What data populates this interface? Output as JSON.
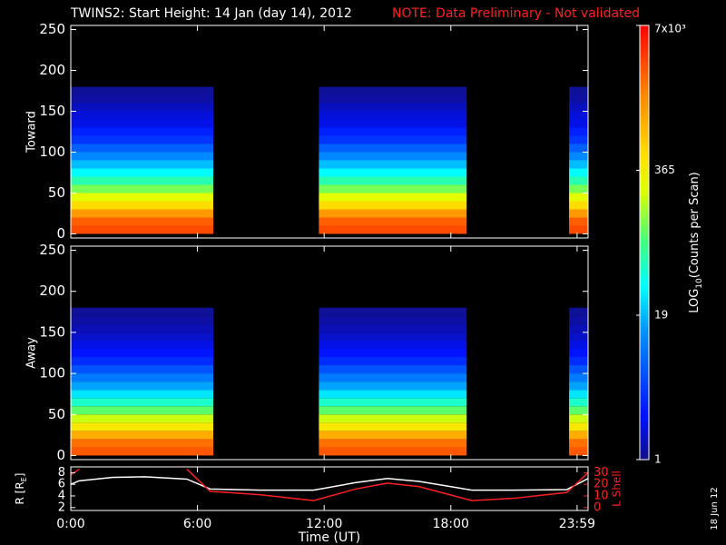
{
  "header": {
    "title": "TWINS2: Start Height: 14 Jan (day  14), 2012",
    "note": "NOTE: Data Preliminary - Not validated",
    "note_color": "#ff2020"
  },
  "colorbar": {
    "log": true,
    "clim": [
      1,
      7000
    ],
    "ticks": [
      1,
      19,
      365,
      {
        "value": 7000,
        "label": "7x10³"
      }
    ],
    "label_parts": [
      "LOG",
      "10",
      "(Counts per Scan)"
    ]
  },
  "footer": {
    "date": "18 Jun 12"
  },
  "chart_data": [
    {
      "type": "heatmap",
      "ylabel": "Toward",
      "xlim": [
        0,
        24.5
      ],
      "ylim": [
        -5,
        255
      ],
      "yticks": [
        0,
        50,
        100,
        150,
        200,
        250
      ],
      "intervals": [
        [
          0,
          6.75
        ],
        [
          11.75,
          18.75
        ],
        [
          23.6,
          24.5
        ]
      ],
      "bins": [
        0,
        10,
        20,
        30,
        40,
        50,
        60,
        70,
        80,
        90,
        100,
        110,
        120,
        130,
        140,
        150,
        160,
        170,
        180
      ],
      "counts": [
        3200,
        2600,
        1300,
        520,
        260,
        120,
        60,
        34,
        20,
        12,
        7,
        4,
        3,
        2,
        1.8,
        1.5,
        1.2,
        1.1
      ]
    },
    {
      "type": "heatmap",
      "ylabel": "Away",
      "xlim": [
        0,
        24.5
      ],
      "ylim": [
        -5,
        255
      ],
      "yticks": [
        0,
        50,
        100,
        150,
        200,
        250
      ],
      "intervals": [
        [
          0,
          6.75
        ],
        [
          11.75,
          18.75
        ],
        [
          23.6,
          24.5
        ]
      ],
      "bins": [
        0,
        10,
        20,
        30,
        40,
        50,
        60,
        70,
        80,
        90,
        100,
        110,
        120,
        130,
        140,
        150,
        160,
        170,
        180
      ],
      "counts": [
        2800,
        2200,
        1000,
        420,
        210,
        100,
        50,
        28,
        16,
        10,
        6,
        3.5,
        2.5,
        2,
        1.6,
        1.4,
        1.2,
        1.1
      ]
    },
    {
      "type": "line",
      "ylabel_parts": [
        "R [R",
        "E",
        "]"
      ],
      "y2label": "L Shell",
      "xlabel": "Time (UT)",
      "xlim": [
        0,
        24.5
      ],
      "ylim": [
        1.5,
        9
      ],
      "y2lim": [
        -2.5,
        35
      ],
      "xticks": [
        {
          "value": 0,
          "label": "0:00"
        },
        {
          "value": 6,
          "label": "6:00"
        },
        {
          "value": 12,
          "label": "12:00"
        },
        {
          "value": 18,
          "label": "18:00"
        },
        {
          "value": 23.98,
          "label": "23:59"
        }
      ],
      "yticks": [
        2,
        4,
        6,
        8
      ],
      "y2ticks": [
        0,
        10,
        20,
        30
      ],
      "x": [
        0,
        0.4,
        2,
        3.5,
        5.5,
        6.6,
        9,
        11.5,
        13.5,
        15,
        16.5,
        19,
        21,
        23.5,
        24.5
      ],
      "series": [
        {
          "name": "R",
          "color": "#ffffff",
          "values": [
            6,
            6.6,
            7.2,
            7.3,
            6.9,
            5.2,
            5.0,
            5.0,
            6.3,
            7.0,
            6.5,
            5.0,
            5.0,
            5.1,
            7.0
          ]
        },
        {
          "name": "L Shell",
          "color": "#ff2020",
          "axis": "y2",
          "values": [
            28,
            33,
            null,
            null,
            33,
            14,
            11,
            6,
            16,
            21,
            18,
            6,
            8,
            13,
            30
          ]
        }
      ]
    }
  ]
}
